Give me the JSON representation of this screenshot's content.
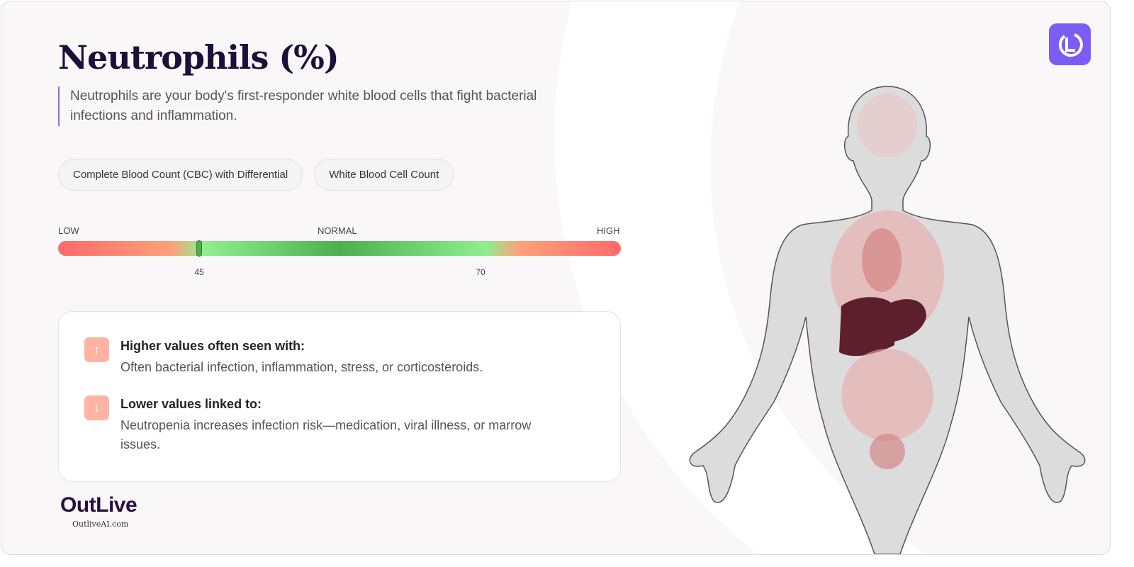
{
  "title": "Neutrophils (%)",
  "description": "Neutrophils are your body's first-responder white blood cells that fight bacterial infections and inflammation.",
  "tags": [
    "Complete Blood Count (CBC) with Differential",
    "White Blood Cell Count"
  ],
  "range": {
    "low_label": "LOW",
    "normal_label": "NORMAL",
    "high_label": "HIGH",
    "normal_min": "45",
    "normal_max": "70",
    "marker_value": 45,
    "colors": {
      "low": "#ff6b6b",
      "normal": "#4caf50"
    }
  },
  "higher": {
    "title": "Higher values often seen with:",
    "text": "Often bacterial infection, inflammation, stress, or corticosteroids.",
    "icon": "arrow-up-icon"
  },
  "lower": {
    "title": "Lower values linked to:",
    "text": "Neutropenia increases infection risk—medication, viral illness, or marrow issues.",
    "icon": "arrow-down-icon"
  },
  "brand": {
    "logo": "OutLive",
    "site": "OutliveAI.com",
    "accent": "#7b5cf5"
  }
}
